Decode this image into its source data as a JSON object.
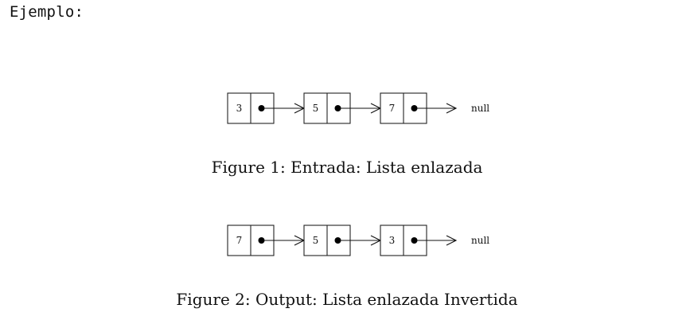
{
  "heading": "Ejemplo:",
  "figures": [
    {
      "nodes": [
        "3",
        "5",
        "7"
      ],
      "terminal": "null",
      "caption": "Figure 1: Entrada: Lista enlazada"
    },
    {
      "nodes": [
        "7",
        "5",
        "3"
      ],
      "terminal": "null",
      "caption": "Figure 2: Output: Lista enlazada Invertida"
    }
  ]
}
